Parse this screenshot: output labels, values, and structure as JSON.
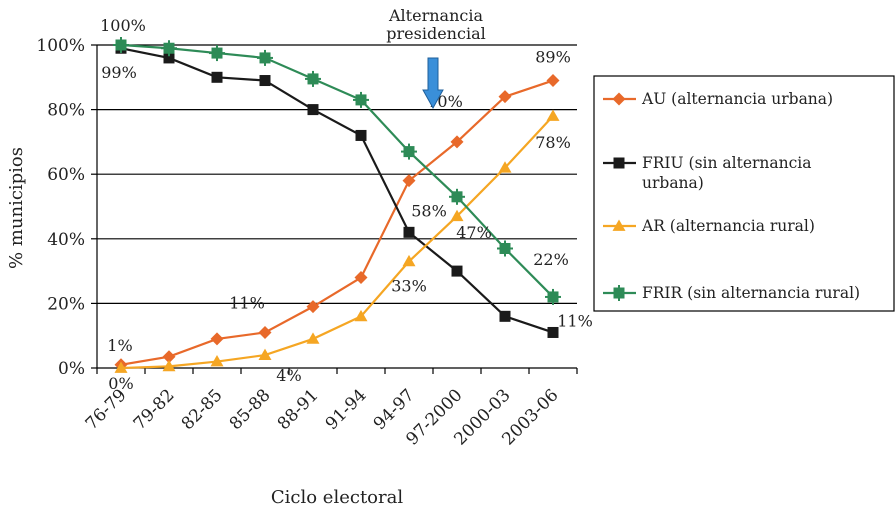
{
  "chart_data": {
    "type": "line",
    "xlabel": "Ciclo electoral",
    "ylabel": "% municipios",
    "ylim": [
      0,
      100
    ],
    "yticks": [
      "0%",
      "20%",
      "40%",
      "60%",
      "80%",
      "100%"
    ],
    "grid": "horizontal",
    "legend_position": "right",
    "categories": [
      "76-79",
      "79-82",
      "82-85",
      "85-88",
      "88-91",
      "91-94",
      "94-97",
      "97-2000",
      "2000-03",
      "2003-06"
    ],
    "series": [
      {
        "name": "AU (alternancia urbana)",
        "color": "#E8692A",
        "marker": "diamond",
        "values": [
          1,
          3.5,
          9,
          11,
          19,
          28,
          58,
          70,
          84,
          89
        ]
      },
      {
        "name": "FRIU (sin alternancia urbana)",
        "color": "#1A1A1A",
        "marker": "square",
        "values": [
          99,
          96,
          90,
          89,
          80,
          72,
          42,
          30,
          16,
          11
        ]
      },
      {
        "name": "AR (alternancia rural)",
        "color": "#F5A623",
        "marker": "triangle",
        "values": [
          0,
          0.5,
          2,
          4,
          9,
          16,
          33,
          47,
          62,
          78
        ]
      },
      {
        "name": "FRIR (sin alternancia rural)",
        "color": "#2E8B57",
        "marker": "cross",
        "values": [
          100,
          99,
          97.5,
          96,
          89.5,
          83,
          67,
          53,
          37,
          22
        ]
      }
    ],
    "data_labels": [
      {
        "text": "100%",
        "series": 3,
        "index": 0
      },
      {
        "text": "99%",
        "series": 1,
        "index": 0
      },
      {
        "text": "1%",
        "series": 0,
        "index": 0
      },
      {
        "text": "0%",
        "series": 2,
        "index": 0
      },
      {
        "text": "11%",
        "series": 0,
        "index": 3
      },
      {
        "text": "4%",
        "series": 2,
        "index": 3
      },
      {
        "text": "58%",
        "series": 0,
        "index": 6
      },
      {
        "text": "33%",
        "series": 2,
        "index": 6
      },
      {
        "text": "70%",
        "series": 0,
        "index": 7
      },
      {
        "text": "47%",
        "series": 2,
        "index": 7
      },
      {
        "text": "89%",
        "series": 0,
        "index": 9
      },
      {
        "text": "78%",
        "series": 2,
        "index": 9
      },
      {
        "text": "22%",
        "series": 3,
        "index": 9
      },
      {
        "text": "11%",
        "series": 1,
        "index": 9
      }
    ],
    "annotation": {
      "lines": [
        "Alternancia",
        "presidencial"
      ],
      "arrow_between": [
        "94-97",
        "97-2000"
      ],
      "arrow_color": "#3A8FD9"
    }
  }
}
